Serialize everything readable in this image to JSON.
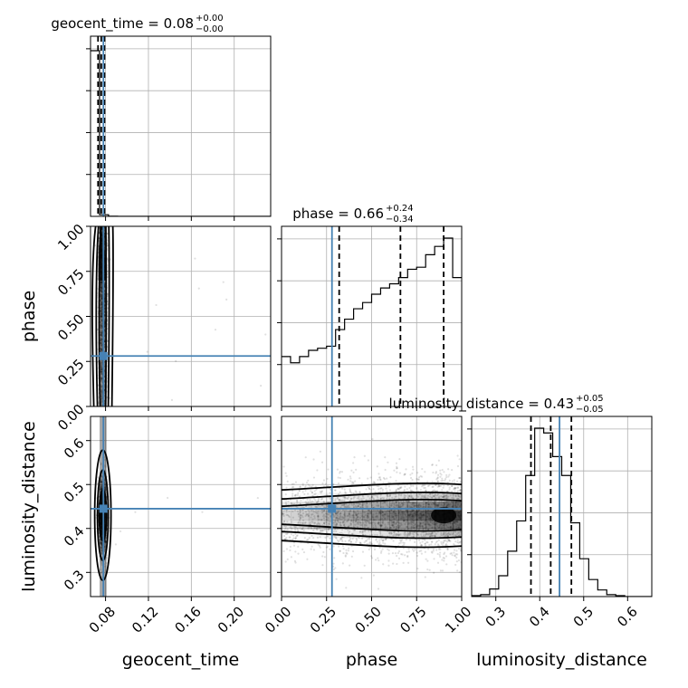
{
  "chart_data": {
    "type": "corner",
    "parameters": [
      "geocent_time",
      "phase",
      "luminosity_distance"
    ],
    "truths": {
      "geocent_time": 0.078,
      "phase": 0.28,
      "luminosity_distance": 0.445
    },
    "truth_color": "#4682b4",
    "ranges": {
      "geocent_time": [
        0.066,
        0.234
      ],
      "phase": [
        0.0,
        1.0
      ],
      "luminosity_distance": [
        0.245,
        0.655
      ]
    },
    "titles": [
      {
        "param": "geocent_time",
        "text": "geocent_time = 0.08",
        "plus": "+0.00",
        "minus": "−0.00"
      },
      {
        "param": "phase",
        "text": "phase = 0.66",
        "plus": "+0.24",
        "minus": "−0.34"
      },
      {
        "param": "luminosity_distance",
        "text": "luminosity_distance = 0.43",
        "plus": "+0.05",
        "minus": "−0.05"
      }
    ],
    "quantiles": {
      "geocent_time": [
        0.073,
        0.076,
        0.079
      ],
      "phase": [
        0.32,
        0.66,
        0.9
      ],
      "luminosity_distance": [
        0.38,
        0.425,
        0.472
      ]
    },
    "xlabels": [
      "geocent_time",
      "phase",
      "luminosity_distance"
    ],
    "ylabels": [
      "",
      "phase",
      "luminosity_distance"
    ],
    "ticks": {
      "geocent_time": {
        "values": [
          0.08,
          0.12,
          0.16,
          0.2
        ],
        "labels": [
          "0.08",
          "0.12",
          "0.16",
          "0.20"
        ]
      },
      "phase": {
        "values": [
          0.0,
          0.25,
          0.5,
          0.75,
          1.0
        ],
        "labels": [
          "0.00",
          "0.25",
          "0.50",
          "0.75",
          "1.00"
        ]
      },
      "luminosity_distance": {
        "values": [
          0.3,
          0.4,
          0.5,
          0.6
        ],
        "labels": [
          "0.3",
          "0.4",
          "0.5",
          "0.6"
        ]
      }
    },
    "histograms": {
      "geocent_time": {
        "edges": [
          0.066,
          0.0744,
          0.0828,
          0.0912,
          0.0996,
          0.108,
          0.1164,
          0.1248,
          0.1332,
          0.1416,
          0.15,
          0.1584,
          0.1668,
          0.1752,
          0.1836,
          0.192,
          0.2004,
          0.2088,
          0.2172,
          0.2256,
          0.234
        ],
        "counts": [
          4000,
          40,
          4,
          0,
          0,
          0,
          0,
          0,
          0,
          0,
          0,
          0,
          0,
          0,
          0,
          0,
          0,
          0,
          1,
          0
        ]
      },
      "phase": {
        "edges": [
          0.0,
          0.05,
          0.1,
          0.15,
          0.2,
          0.25,
          0.3,
          0.35,
          0.4,
          0.45,
          0.5,
          0.55,
          0.6,
          0.65,
          0.7,
          0.75,
          0.8,
          0.85,
          0.9,
          0.95,
          1.0
        ],
        "counts": [
          24,
          21,
          24,
          27,
          28,
          29,
          37,
          42,
          47,
          50,
          54,
          57,
          59,
          62,
          66,
          67,
          73,
          77,
          81,
          62
        ]
      },
      "luminosity_distance": {
        "edges": [
          0.245,
          0.2655,
          0.286,
          0.3065,
          0.327,
          0.3475,
          0.368,
          0.3885,
          0.409,
          0.4295,
          0.45,
          0.4705,
          0.491,
          0.5115,
          0.532,
          0.5525,
          0.573,
          0.5935,
          0.614,
          0.6345,
          0.655
        ],
        "counts": [
          1,
          2,
          8,
          22,
          48,
          80,
          128,
          178,
          173,
          148,
          128,
          78,
          40,
          18,
          7,
          2,
          1,
          0,
          0,
          0
        ]
      }
    },
    "grid": true
  }
}
